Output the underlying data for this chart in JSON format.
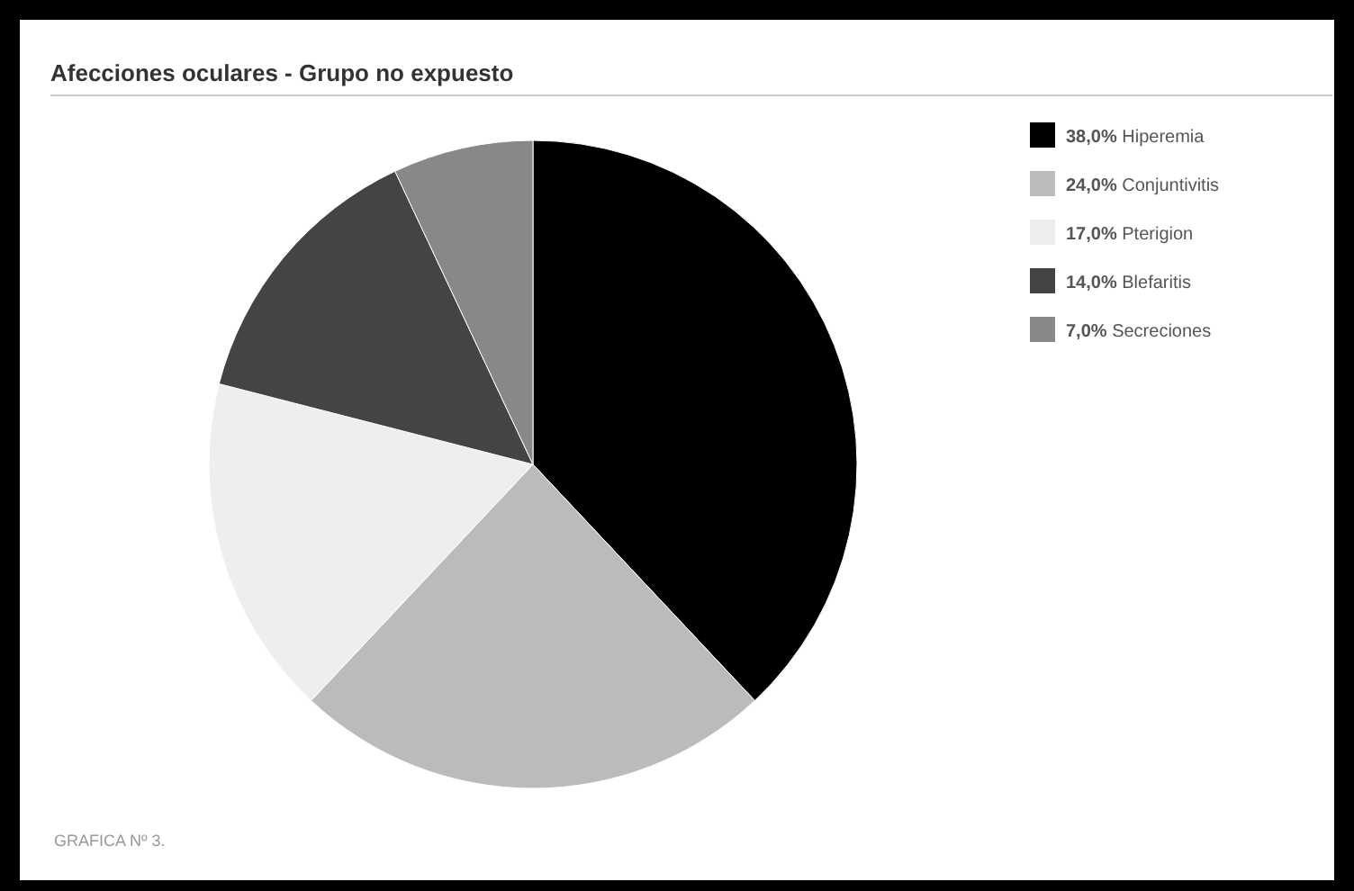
{
  "chart_data": {
    "type": "pie",
    "title": "Afecciones oculares - Grupo no expuesto",
    "categories": [
      "38,0% Hiperemia",
      "24,0% Conjuntivitis",
      "17,0% Pterigion",
      "14,0% Blefaritis",
      "7,0% Secreciones"
    ],
    "values": [
      38,
      24,
      17,
      14,
      7
    ],
    "colors": [
      "#000000",
      "#bbbbbb",
      "#eeeeee",
      "#444444",
      "#888888"
    ],
    "legend": "top right",
    "annotations": [
      "GRAFICA Nº 3."
    ]
  }
}
